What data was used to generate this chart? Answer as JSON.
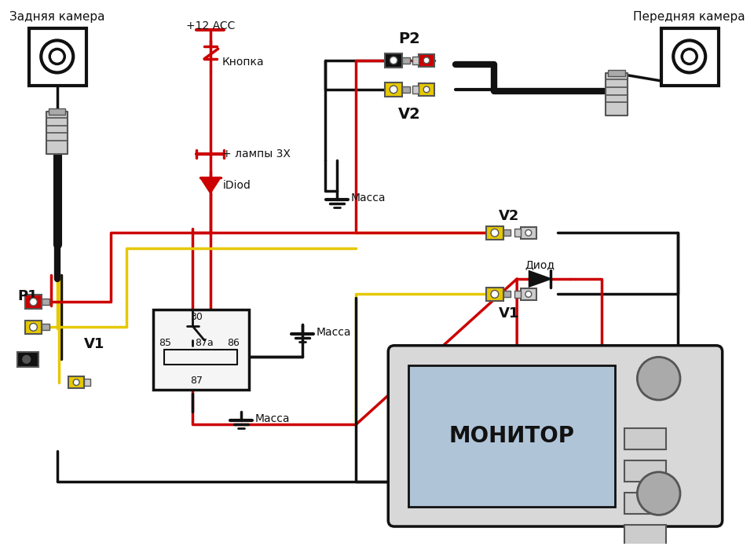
{
  "bg_color": "#ffffff",
  "labels": {
    "rear_camera": "Задняя камера",
    "front_camera": "Передняя камера",
    "button": "Кнопка",
    "plus12acc": "+12 ACC",
    "lamp_plus": "+ лампы 3X",
    "idiod": "iDiod",
    "massa1": "Масса",
    "massa2": "Масса",
    "massa3": "Масса",
    "diod": "Диод",
    "monitor": "МОНИТОР",
    "p1": "P1",
    "p2": "P2",
    "v1_left": "V1",
    "v2_left": "V2",
    "v1_right": "V1",
    "v2_right": "V2",
    "relay_30": "30",
    "relay_85": "85",
    "relay_86": "86",
    "relay_87a": "87a",
    "relay_87": "87"
  },
  "colors": {
    "red": "#cc0000",
    "black": "#111111",
    "yellow": "#e6c800",
    "white": "#ffffff",
    "gray": "#999999",
    "light_gray": "#cccccc",
    "mid_gray": "#aaaaaa",
    "dark_gray": "#555555",
    "relay_fill": "#f5f5f5",
    "monitor_body": "#d8d8d8",
    "monitor_screen": "#b0c4d8"
  }
}
